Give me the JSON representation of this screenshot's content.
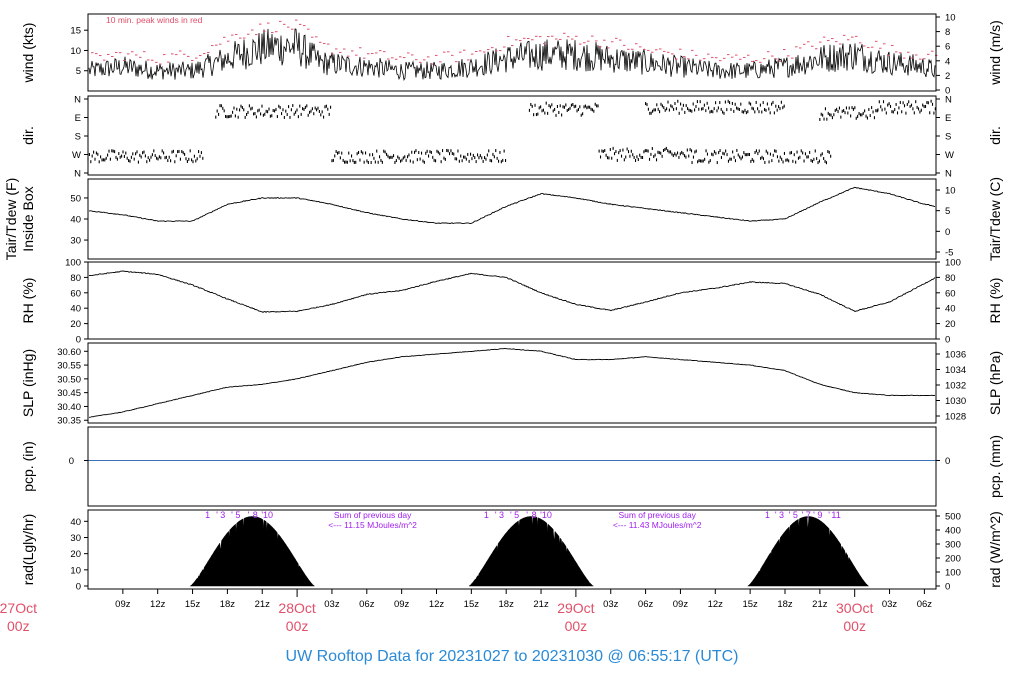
{
  "title": "UW Rooftop Data for 20231027  to  20231030 @ 06:55:17  (UTC)",
  "colors": {
    "line": "#000000",
    "peak": "#e0506a",
    "date_label": "#e0506a",
    "title": "#2a8ad6",
    "annotation": "#a020f0",
    "precip_line": "#3d6fb6"
  },
  "time_axis": {
    "start_hours": 6,
    "end_hours": 79,
    "tick_labels": [
      "09z",
      "12z",
      "15z",
      "18z",
      "21z",
      "03z",
      "06z",
      "09z",
      "12z",
      "15z",
      "18z",
      "21z",
      "03z",
      "06z",
      "09z",
      "12z",
      "15z",
      "18z",
      "21z",
      "03z",
      "06z"
    ],
    "tick_hours": [
      9,
      12,
      15,
      18,
      21,
      27,
      30,
      33,
      36,
      39,
      42,
      45,
      51,
      54,
      57,
      60,
      63,
      66,
      69,
      75,
      78
    ],
    "day_labels": [
      {
        "date": "27Oct",
        "zone": "00z",
        "hour": 0
      },
      {
        "date": "28Oct",
        "zone": "00z",
        "hour": 24
      },
      {
        "date": "29Oct",
        "zone": "00z",
        "hour": 48
      },
      {
        "date": "30Oct",
        "zone": "00z",
        "hour": 72
      }
    ]
  },
  "chart_data": [
    {
      "type": "line",
      "panel": "wind",
      "ylabel": "wind (kts)",
      "ylabel_right": "wind (m/s)",
      "ylim": [
        0,
        19
      ],
      "yticks": [
        5,
        10,
        15
      ],
      "yticks_right": [
        0,
        2,
        4,
        6,
        8,
        10
      ],
      "annotation": "10 min. peak winds in red",
      "x_hours": [
        6,
        9,
        12,
        15,
        18,
        20,
        22,
        24,
        26,
        30,
        33,
        36,
        39,
        42,
        45,
        48,
        51,
        54,
        57,
        60,
        63,
        66,
        69,
        72,
        75,
        78,
        79
      ],
      "mean_kts": [
        5,
        6,
        5,
        5,
        8,
        10,
        11,
        11,
        7,
        6,
        5,
        5,
        6,
        8,
        9,
        9,
        8,
        7,
        6,
        5,
        5,
        6,
        8,
        9,
        7,
        6,
        5
      ],
      "peak_kts": [
        8,
        9,
        8,
        9,
        13,
        15,
        16,
        16,
        11,
        9,
        8,
        8,
        9,
        12,
        13,
        13,
        12,
        10,
        9,
        8,
        8,
        9,
        12,
        13,
        10,
        9,
        8
      ]
    },
    {
      "type": "scatter",
      "panel": "direction",
      "ylabel": "dir.",
      "yticks": [
        "N",
        "W",
        "S",
        "E",
        "N"
      ],
      "y_range_deg": [
        0,
        360
      ],
      "clusters": [
        {
          "hours": [
            6,
            16
          ],
          "deg": 80
        },
        {
          "hours": [
            17,
            27
          ],
          "deg": 300
        },
        {
          "hours": [
            27,
            42
          ],
          "deg": 80
        },
        {
          "hours": [
            44,
            50
          ],
          "deg": 310
        },
        {
          "hours": [
            50,
            58
          ],
          "deg": 90
        },
        {
          "hours": [
            54,
            66
          ],
          "deg": 320
        },
        {
          "hours": [
            58,
            70
          ],
          "deg": 80
        },
        {
          "hours": [
            69,
            74
          ],
          "deg": 290
        },
        {
          "hours": [
            74,
            79
          ],
          "deg": 320
        }
      ]
    },
    {
      "type": "line",
      "panel": "temperature",
      "ylabel": "Tair/Tdew (F)",
      "ylabel2": "Inside Box",
      "ylabel_right": "Tair/Tdew (C)",
      "ylim": [
        21,
        59
      ],
      "yticks": [
        30,
        40,
        50
      ],
      "yticks_right": [
        -5,
        0,
        5,
        10
      ],
      "x_hours": [
        6,
        9,
        12,
        15,
        18,
        21,
        24,
        27,
        30,
        33,
        36,
        39,
        42,
        45,
        48,
        51,
        54,
        57,
        60,
        63,
        66,
        69,
        72,
        75,
        78,
        79
      ],
      "values_f": [
        44,
        42,
        39,
        39,
        47,
        50,
        50,
        47,
        43,
        40,
        38,
        38,
        46,
        52,
        50,
        47,
        45,
        43,
        41,
        39,
        40,
        48,
        55,
        52,
        47,
        46
      ]
    },
    {
      "type": "line",
      "panel": "rh",
      "ylabel": "RH (%)",
      "ylabel_right": "RH (%)",
      "ylim": [
        0,
        100
      ],
      "yticks": [
        0,
        20,
        40,
        60,
        80,
        100
      ],
      "x_hours": [
        6,
        9,
        12,
        15,
        18,
        21,
        24,
        27,
        30,
        33,
        36,
        39,
        42,
        45,
        48,
        51,
        54,
        57,
        60,
        63,
        66,
        69,
        72,
        75,
        78,
        79
      ],
      "values": [
        82,
        88,
        84,
        70,
        52,
        35,
        36,
        45,
        58,
        63,
        75,
        85,
        80,
        60,
        45,
        37,
        48,
        60,
        66,
        74,
        72,
        58,
        36,
        48,
        72,
        80
      ]
    },
    {
      "type": "line",
      "panel": "slp",
      "ylabel": "SLP (inHg)",
      "ylabel_right": "SLP (hPa)",
      "ylim": [
        30.34,
        30.63
      ],
      "yticks": [
        30.35,
        30.4,
        30.45,
        30.5,
        30.55,
        30.6
      ],
      "yticks_right": [
        1028,
        1030,
        1032,
        1034,
        1036
      ],
      "x_hours": [
        6,
        9,
        12,
        15,
        18,
        21,
        24,
        27,
        30,
        33,
        36,
        39,
        42,
        45,
        48,
        51,
        54,
        57,
        60,
        63,
        66,
        69,
        72,
        75,
        78,
        79
      ],
      "values": [
        30.36,
        30.38,
        30.41,
        30.44,
        30.47,
        30.48,
        30.5,
        30.53,
        30.56,
        30.58,
        30.59,
        30.6,
        30.61,
        30.6,
        30.57,
        30.57,
        30.58,
        30.57,
        30.56,
        30.55,
        30.53,
        30.48,
        30.45,
        30.44,
        30.44,
        30.44
      ]
    },
    {
      "type": "line",
      "panel": "precip",
      "ylabel": "pcp. (in)",
      "ylabel_right": "pcp. (mm)",
      "ytick_left": "0",
      "ytick_right": "0",
      "value": 0
    },
    {
      "type": "area",
      "panel": "radiation",
      "ylabel": "rad(Lgly/hr)",
      "ylabel_right": "rad (W/m^2)",
      "ylim": [
        0,
        47
      ],
      "yticks": [
        0,
        10,
        20,
        30,
        40
      ],
      "yticks_right": [
        0,
        100,
        200,
        300,
        400,
        500
      ],
      "days": [
        {
          "start_hour": 14.8,
          "end_hour": 25.5,
          "peak": 43,
          "peak_hour": 20
        },
        {
          "start_hour": 38.8,
          "end_hour": 49.5,
          "peak": 43,
          "peak_hour": 44
        },
        {
          "start_hour": 62.8,
          "end_hour": 73.2,
          "peak": 43,
          "peak_hour": 68
        }
      ],
      "hour_labels": [
        {
          "hour": 16.3,
          "text": "1"
        },
        {
          "hour": 17.1,
          "text": "'"
        },
        {
          "hour": 17.6,
          "text": "3"
        },
        {
          "hour": 18.4,
          "text": "'"
        },
        {
          "hour": 18.9,
          "text": "5"
        },
        {
          "hour": 19.8,
          "text": "'"
        },
        {
          "hour": 20.4,
          "text": "8"
        },
        {
          "hour": 21.0,
          "text": "'"
        },
        {
          "hour": 21.5,
          "text": "10"
        },
        {
          "hour": 40.3,
          "text": "1"
        },
        {
          "hour": 41.1,
          "text": "'"
        },
        {
          "hour": 41.6,
          "text": "3"
        },
        {
          "hour": 42.4,
          "text": "'"
        },
        {
          "hour": 42.9,
          "text": "5"
        },
        {
          "hour": 43.8,
          "text": "'"
        },
        {
          "hour": 44.4,
          "text": "8"
        },
        {
          "hour": 45.0,
          "text": "'"
        },
        {
          "hour": 45.5,
          "text": "10"
        },
        {
          "hour": 64.5,
          "text": "1"
        },
        {
          "hour": 65.2,
          "text": "'"
        },
        {
          "hour": 65.7,
          "text": "3"
        },
        {
          "hour": 66.4,
          "text": "'"
        },
        {
          "hour": 66.9,
          "text": "5"
        },
        {
          "hour": 67.5,
          "text": "'"
        },
        {
          "hour": 68.0,
          "text": "7"
        },
        {
          "hour": 68.5,
          "text": "'"
        },
        {
          "hour": 69.0,
          "text": "9"
        },
        {
          "hour": 69.8,
          "text": "'"
        },
        {
          "hour": 70.4,
          "text": "11"
        }
      ],
      "summaries": [
        {
          "hour": 30.5,
          "line1": "Sum of previous day",
          "line2": "<--- 11.15 MJoules/m^2"
        },
        {
          "hour": 55.0,
          "line1": "Sum of previous day",
          "line2": "<--- 11.43 MJoules/m^2"
        }
      ]
    }
  ]
}
